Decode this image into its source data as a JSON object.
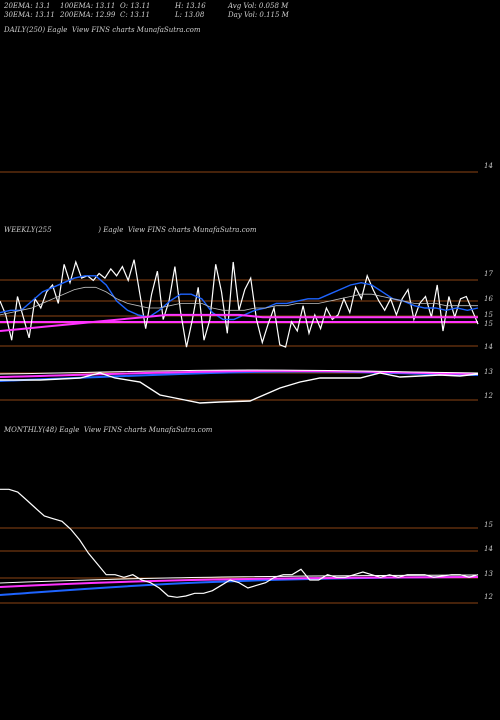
{
  "header": {
    "ema20": "20EMA: 13.1",
    "ema100": "100EMA: 13.11",
    "open": "O: 13.11",
    "high": "H: 13.16",
    "avg_vol": "Avg Vol: 0.058 M",
    "ema30": "30EMA: 13.11",
    "ema200": "200EMA: 12.99",
    "close": "C: 13.11",
    "low": "L: 13.08",
    "day_vol": "Day Vol: 0.115 M"
  },
  "colors": {
    "background": "#000000",
    "price": "#ffffff",
    "gridline": "#8b4513",
    "ema_blue": "#1e64ff",
    "ema_magenta": "#ff33ff",
    "ema_brown": "#a0522d"
  },
  "chart_data": [
    {
      "type": "line",
      "title": "DAILY(250) Eagle  View FINS charts MunafaSutra.com",
      "yticks": [
        "14"
      ],
      "series": []
    },
    {
      "type": "line",
      "title": "WEEKLY(255                     ) Eagle  View FINS charts MunafaSutra.com",
      "yticks": [
        "17",
        "16",
        "15",
        "15",
        "14",
        "13",
        "12"
      ],
      "ylim": [
        11.6,
        17.6
      ],
      "series": [
        {
          "values": [
            15.9,
            15.3,
            14.2,
            16.1,
            15.2,
            14.3,
            16.0,
            15.6,
            16.3,
            16.6,
            15.8,
            17.5,
            16.7,
            17.6,
            16.9,
            17.0,
            16.8,
            17.1,
            16.9,
            17.3,
            17.0,
            17.4,
            16.8,
            17.7,
            16.2,
            14.7,
            16.2,
            17.2,
            15.1,
            15.9,
            17.4,
            15.4,
            13.9,
            15.1,
            16.5,
            14.2,
            15.1,
            17.5,
            16.3,
            14.5,
            17.6,
            15.5,
            16.4,
            16.9,
            15.1,
            14.1,
            14.9,
            15.6,
            14.0,
            13.9,
            15.0,
            14.6,
            15.7,
            14.5,
            15.3,
            14.7,
            15.6,
            15.1,
            15.3,
            16.0,
            15.4,
            16.5,
            16.0,
            17.0,
            16.4,
            15.9,
            15.5,
            16.0,
            15.3,
            16.0,
            16.4,
            15.1,
            15.8,
            16.1,
            15.2,
            16.6,
            14.6,
            16.1,
            15.2,
            16.0,
            16.1,
            15.5,
            14.9
          ]
        },
        {
          "values": [
            15.4,
            15.5,
            15.5,
            15.9,
            16.3,
            16.5,
            16.7,
            16.9,
            17.0,
            17.0,
            16.6,
            15.9,
            15.5,
            15.3,
            15.2,
            15.5,
            15.9,
            16.2,
            16.2,
            16.0,
            15.4,
            15.1,
            15.1,
            15.3,
            15.5,
            15.6,
            15.8,
            15.8,
            15.9,
            16.0,
            16.0,
            16.2,
            16.4,
            16.6,
            16.7,
            16.6,
            16.3,
            16.0,
            15.9,
            15.7,
            15.6,
            15.6,
            15.5,
            15.6,
            15.5,
            15.6
          ]
        },
        {
          "values": [
            15.3,
            15.4,
            15.5,
            15.6,
            15.8,
            16.0,
            16.2,
            16.4,
            16.5,
            16.5,
            16.3,
            16.0,
            15.8,
            15.7,
            15.6,
            15.6,
            15.7,
            15.8,
            15.8,
            15.8,
            15.6,
            15.5,
            15.5,
            15.5,
            15.6,
            15.6,
            15.7,
            15.7,
            15.8,
            15.8,
            15.8,
            15.9,
            16.0,
            16.1,
            16.2,
            16.2,
            16.1,
            16.0,
            15.9,
            15.8,
            15.8,
            15.8,
            15.7,
            15.7,
            15.7,
            15.7
          ]
        },
        {
          "values": [
            14.6,
            14.7,
            14.8,
            14.9,
            15.0,
            15.1,
            15.2,
            15.3,
            15.3,
            15.3,
            15.3,
            15.2,
            15.2,
            15.2,
            15.2,
            15.2,
            15.2,
            15.2,
            15.2,
            15.2,
            15.2
          ]
        }
      ]
    },
    {
      "type": "line",
      "title": "MONTHLY(48) Eagle  View FINS charts MunafaSutra.com",
      "yticks": [
        "15",
        "14",
        "13",
        "12"
      ],
      "ylim": [
        11.5,
        16.0
      ],
      "series": [
        {
          "values": [
            16.1,
            16.1,
            16.0,
            15.7,
            15.4,
            15.1,
            15.0,
            14.9,
            14.6,
            14.2,
            13.7,
            13.3,
            12.9,
            12.9,
            12.8,
            12.9,
            12.7,
            12.6,
            12.4,
            12.1,
            12.05,
            12.1,
            12.2,
            12.2,
            12.3,
            12.5,
            12.7,
            12.6,
            12.4,
            12.5,
            12.6,
            12.8,
            12.9,
            12.9,
            13.1,
            12.7,
            12.7,
            12.9,
            12.8,
            12.8,
            12.9,
            13.0,
            12.9,
            12.8,
            12.9,
            12.8,
            12.9,
            12.9,
            12.9,
            12.8,
            12.85,
            12.9,
            12.9,
            12.8,
            12.9
          ]
        }
      ]
    }
  ]
}
